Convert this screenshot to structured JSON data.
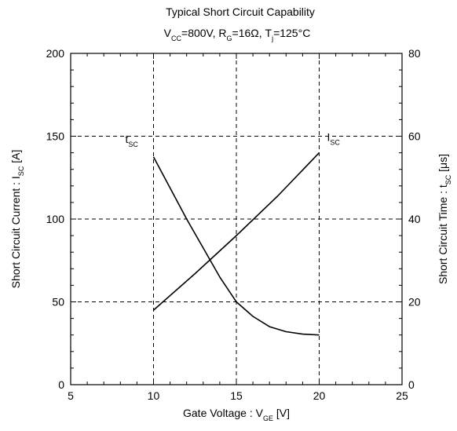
{
  "chart_data": {
    "type": "line",
    "title": "Typical Short Circuit Capability",
    "subtitle": {
      "parts": [
        {
          "t": "V"
        },
        {
          "t": "CC",
          "sub": true
        },
        {
          "t": "=800V, R"
        },
        {
          "t": "G",
          "sub": true
        },
        {
          "t": "=16Ω, T"
        },
        {
          "t": "j",
          "sub": true
        },
        {
          "t": "=125°C"
        }
      ]
    },
    "xlabel": {
      "parts": [
        {
          "t": "Gate Voltage  :  V"
        },
        {
          "t": "GE",
          "sub": true
        },
        {
          "t": "   [V]"
        }
      ]
    },
    "ylabel_left": {
      "parts": [
        {
          "t": "Short Circuit Current  :  I"
        },
        {
          "t": "SC",
          "sub": true
        },
        {
          "t": "  [A]"
        }
      ]
    },
    "ylabel_right": {
      "parts": [
        {
          "t": "Short Circuit Time  :  t"
        },
        {
          "t": "SC",
          "sub": true
        },
        {
          "t": "  [μs]"
        }
      ]
    },
    "xlim": [
      5,
      25
    ],
    "ylim_left": [
      0,
      200
    ],
    "ylim_right": [
      0,
      80
    ],
    "xticks": [
      "5",
      "10",
      "15",
      "20",
      "25"
    ],
    "yticks_left": [
      "0",
      "50",
      "100",
      "150",
      "200"
    ],
    "yticks_right": [
      "0",
      "20",
      "40",
      "60",
      "80"
    ],
    "grid": "dashed",
    "series": [
      {
        "name": {
          "parts": [
            {
              "t": "I"
            },
            {
              "t": "SC",
              "sub": true
            }
          ]
        },
        "axis": "left",
        "color": "#000000",
        "x": [
          10,
          12.5,
          15,
          17.5,
          20
        ],
        "y": [
          45,
          67,
          90,
          114,
          140
        ]
      },
      {
        "name": {
          "parts": [
            {
              "t": "t"
            },
            {
              "t": "SC",
              "sub": true
            }
          ]
        },
        "axis": "right",
        "color": "#000000",
        "x": [
          10,
          11,
          12,
          13,
          14,
          15,
          16,
          17,
          18,
          19,
          20
        ],
        "y": [
          55,
          47.5,
          40,
          33,
          26,
          20,
          16.5,
          14,
          12.8,
          12.2,
          12
        ]
      }
    ]
  }
}
